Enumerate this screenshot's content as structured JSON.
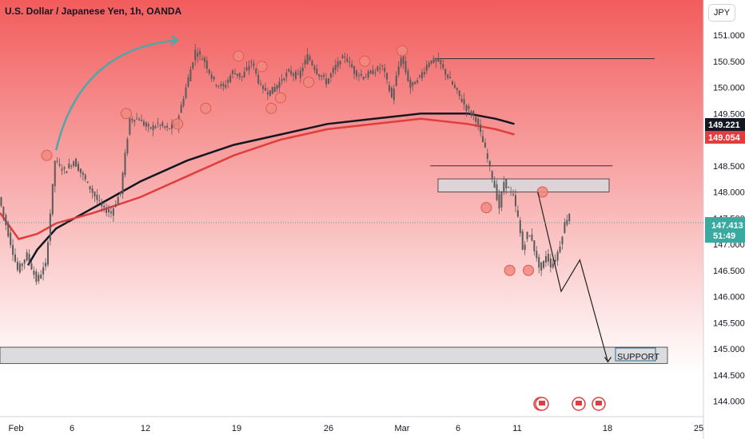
{
  "chart_data": {
    "type": "candlestick",
    "title": "U.S. Dollar / Japanese Yen, 1h, OANDA",
    "currency_button": "JPY",
    "x_tick_labels": [
      "Feb",
      "6",
      "12",
      "19",
      "26",
      "Mar",
      "6",
      "11",
      "18",
      "25"
    ],
    "y_tick_labels": [
      "151.000",
      "150.500",
      "150.000",
      "149.500",
      "148.500",
      "148.000",
      "147.500",
      "147.000",
      "146.500",
      "146.000",
      "145.500",
      "145.000",
      "144.500",
      "144.000"
    ],
    "ylim": [
      143.95,
      151.25
    ],
    "price_series": {
      "name": "USDJPY",
      "points": [
        [
          0,
          147.9
        ],
        [
          2,
          147.2
        ],
        [
          4,
          146.5
        ],
        [
          6,
          146.8
        ],
        [
          8,
          146.3
        ],
        [
          10,
          146.6
        ],
        [
          12,
          148.6
        ],
        [
          14,
          148.4
        ],
        [
          16,
          148.6
        ],
        [
          18,
          148.3
        ],
        [
          20,
          148.0
        ],
        [
          22,
          147.7
        ],
        [
          24,
          147.6
        ],
        [
          26,
          148.0
        ],
        [
          28,
          149.4
        ],
        [
          30,
          149.4
        ],
        [
          32,
          149.2
        ],
        [
          34,
          149.3
        ],
        [
          36,
          149.2
        ],
        [
          38,
          149.3
        ],
        [
          40,
          150.0
        ],
        [
          42,
          150.7
        ],
        [
          44,
          150.5
        ],
        [
          46,
          150.1
        ],
        [
          48,
          150.0
        ],
        [
          50,
          150.3
        ],
        [
          52,
          150.2
        ],
        [
          54,
          150.5
        ],
        [
          56,
          150.0
        ],
        [
          58,
          149.9
        ],
        [
          60,
          150.1
        ],
        [
          62,
          150.3
        ],
        [
          64,
          150.2
        ],
        [
          66,
          150.6
        ],
        [
          68,
          150.3
        ],
        [
          70,
          150.1
        ],
        [
          72,
          150.4
        ],
        [
          74,
          150.6
        ],
        [
          76,
          150.3
        ],
        [
          78,
          150.2
        ],
        [
          80,
          150.3
        ],
        [
          82,
          150.4
        ],
        [
          84,
          149.8
        ],
        [
          86,
          150.6
        ],
        [
          88,
          150.0
        ],
        [
          90,
          150.2
        ],
        [
          92,
          150.5
        ],
        [
          94,
          150.5
        ],
        [
          96,
          150.2
        ],
        [
          98,
          149.9
        ],
        [
          100,
          149.6
        ],
        [
          102,
          149.4
        ],
        [
          104,
          148.8
        ],
        [
          106,
          148.1
        ],
        [
          107,
          147.7
        ],
        [
          108,
          148.2
        ],
        [
          110,
          147.9
        ],
        [
          111,
          147.5
        ],
        [
          112,
          146.9
        ],
        [
          113,
          147.2
        ],
        [
          114,
          147.1
        ],
        [
          115,
          146.7
        ],
        [
          116,
          146.5
        ],
        [
          117,
          146.8
        ],
        [
          118,
          146.6
        ],
        [
          119,
          146.7
        ],
        [
          120,
          147.0
        ],
        [
          121,
          147.4
        ],
        [
          122,
          147.6
        ]
      ]
    },
    "moving_averages": [
      {
        "color": "#131722",
        "last_value": "149.221",
        "points": [
          [
            6,
            146.6
          ],
          [
            8,
            146.9
          ],
          [
            12,
            147.3
          ],
          [
            20,
            147.7
          ],
          [
            30,
            148.2
          ],
          [
            40,
            148.6
          ],
          [
            50,
            148.9
          ],
          [
            60,
            149.1
          ],
          [
            70,
            149.3
          ],
          [
            80,
            149.4
          ],
          [
            90,
            149.5
          ],
          [
            100,
            149.5
          ],
          [
            106,
            149.4
          ],
          [
            110,
            149.3
          ]
        ]
      },
      {
        "color": "#e03e3e",
        "last_value": "149.054",
        "points": [
          [
            0,
            147.6
          ],
          [
            4,
            147.1
          ],
          [
            8,
            147.2
          ],
          [
            12,
            147.4
          ],
          [
            20,
            147.6
          ],
          [
            30,
            147.9
          ],
          [
            40,
            148.3
          ],
          [
            50,
            148.7
          ],
          [
            60,
            149.0
          ],
          [
            70,
            149.2
          ],
          [
            80,
            149.3
          ],
          [
            90,
            149.4
          ],
          [
            100,
            149.3
          ],
          [
            106,
            149.2
          ],
          [
            110,
            149.1
          ]
        ]
      }
    ],
    "current_price": {
      "value": "147.413",
      "timer": "51:49"
    },
    "support_zone": {
      "label": "SUPPORT",
      "from": 144.75,
      "to": 145.0
    },
    "resistance_zone": {
      "from": 148.0,
      "to": 148.25
    },
    "horizontal_levels": [
      {
        "value": 150.55,
        "start_x": 93,
        "end_x": 140
      },
      {
        "value": 148.5,
        "start_x": 92,
        "end_x": 131
      }
    ],
    "projection_path": [
      [
        115,
        148.0
      ],
      [
        120,
        146.1
      ],
      [
        124,
        146.7
      ],
      [
        130,
        144.75
      ]
    ],
    "arrow_curve": {
      "start": [
        12,
        148.8
      ],
      "end": [
        38,
        150.9
      ]
    },
    "marked_swings": [
      [
        10,
        148.7
      ],
      [
        27,
        149.5
      ],
      [
        38,
        149.3
      ],
      [
        44,
        149.6
      ],
      [
        51,
        150.6
      ],
      [
        56,
        150.4
      ],
      [
        58,
        149.6
      ],
      [
        60,
        149.8
      ],
      [
        66,
        150.1
      ],
      [
        78,
        150.5
      ],
      [
        86,
        150.7
      ],
      [
        104,
        147.7
      ],
      [
        109,
        146.5
      ],
      [
        113,
        146.5
      ],
      [
        116,
        148.0
      ]
    ],
    "event_markers": [
      [
        117,
        144.0
      ],
      [
        120,
        144.0
      ],
      [
        125,
        144.0
      ],
      [
        129,
        144.0
      ]
    ],
    "grid": false,
    "colors": {
      "background_top": "#f25c5c",
      "background_bottom": "#ffffff",
      "candles": "#5a5a5a",
      "arrow_curve": "#4fa7a6",
      "swing_marker_fill": "#f08a80",
      "swing_marker_stroke": "#e05a50",
      "zone_fill": "#d8d8dc",
      "current_price_badge": "#3aa99f",
      "black_ma_badge": "#131722",
      "red_ma_badge": "#e03e3e"
    }
  }
}
